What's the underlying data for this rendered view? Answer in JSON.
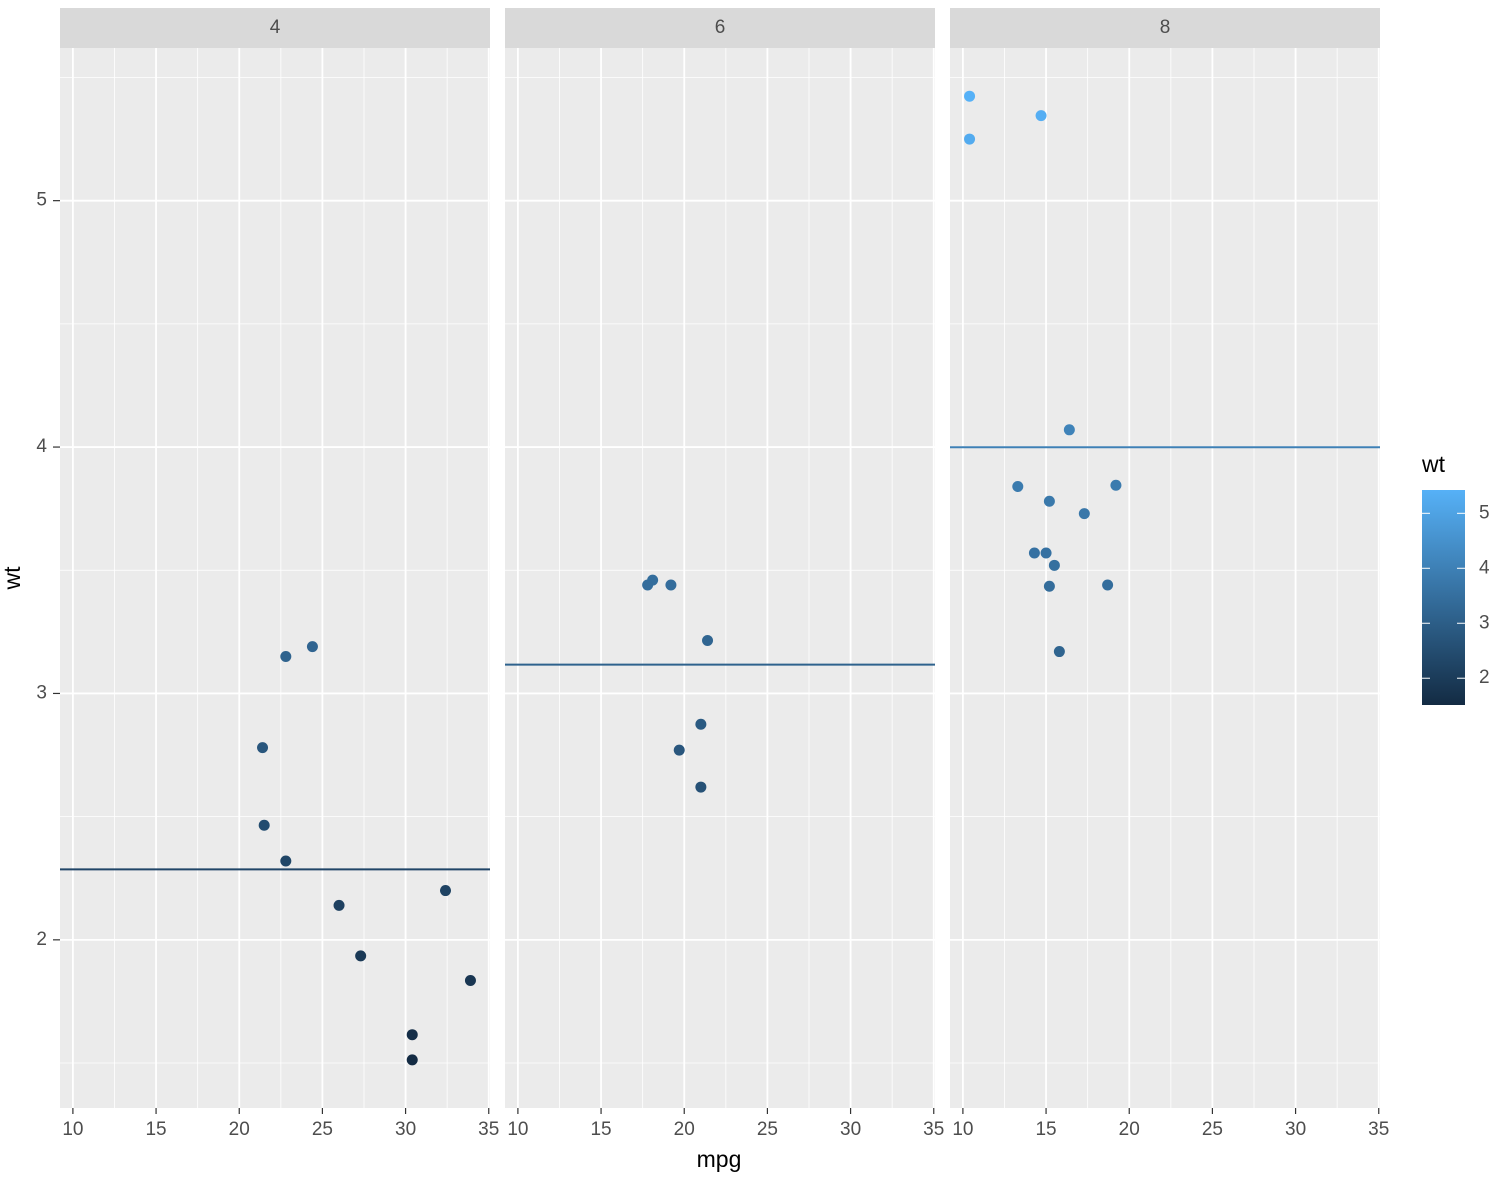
{
  "chart_data": {
    "type": "scatter",
    "x_label": "mpg",
    "y_label": "wt",
    "xlim": [
      9.225,
      35.075
    ],
    "ylim": [
      1.3175,
      5.6196
    ],
    "xticks": [
      10,
      15,
      20,
      25,
      30,
      35
    ],
    "yticks": [
      2,
      3,
      4,
      5
    ],
    "grid": true,
    "facets": [
      {
        "label": "4",
        "x": [
          22.8,
          24.4,
          22.8,
          32.4,
          30.4,
          33.9,
          21.5,
          27.3,
          26,
          30.4,
          21.4
        ],
        "y": [
          2.32,
          3.19,
          3.15,
          2.2,
          1.615,
          1.835,
          2.465,
          1.935,
          2.14,
          1.513,
          2.78
        ],
        "hline": 2.285727
      },
      {
        "label": "6",
        "x": [
          21,
          21,
          21.4,
          18.1,
          19.2,
          17.8,
          19.7
        ],
        "y": [
          2.62,
          2.875,
          3.215,
          3.46,
          3.44,
          3.44,
          2.77
        ],
        "hline": 3.117143
      },
      {
        "label": "8",
        "x": [
          18.7,
          14.3,
          16.4,
          17.3,
          15.2,
          10.4,
          10.4,
          14.7,
          15.5,
          15.2,
          13.3,
          19.2,
          15.8,
          15
        ],
        "y": [
          3.44,
          3.57,
          4.07,
          3.73,
          3.78,
          5.25,
          5.424,
          5.345,
          3.52,
          3.435,
          3.84,
          3.845,
          3.17,
          3.57
        ],
        "hline": 3.999214
      }
    ],
    "color_scale": {
      "title": "wt",
      "low": "#132B43",
      "high": "#56B1F7",
      "limits": [
        1.513,
        5.424
      ],
      "ticks": [
        2,
        3,
        4,
        5
      ]
    }
  }
}
